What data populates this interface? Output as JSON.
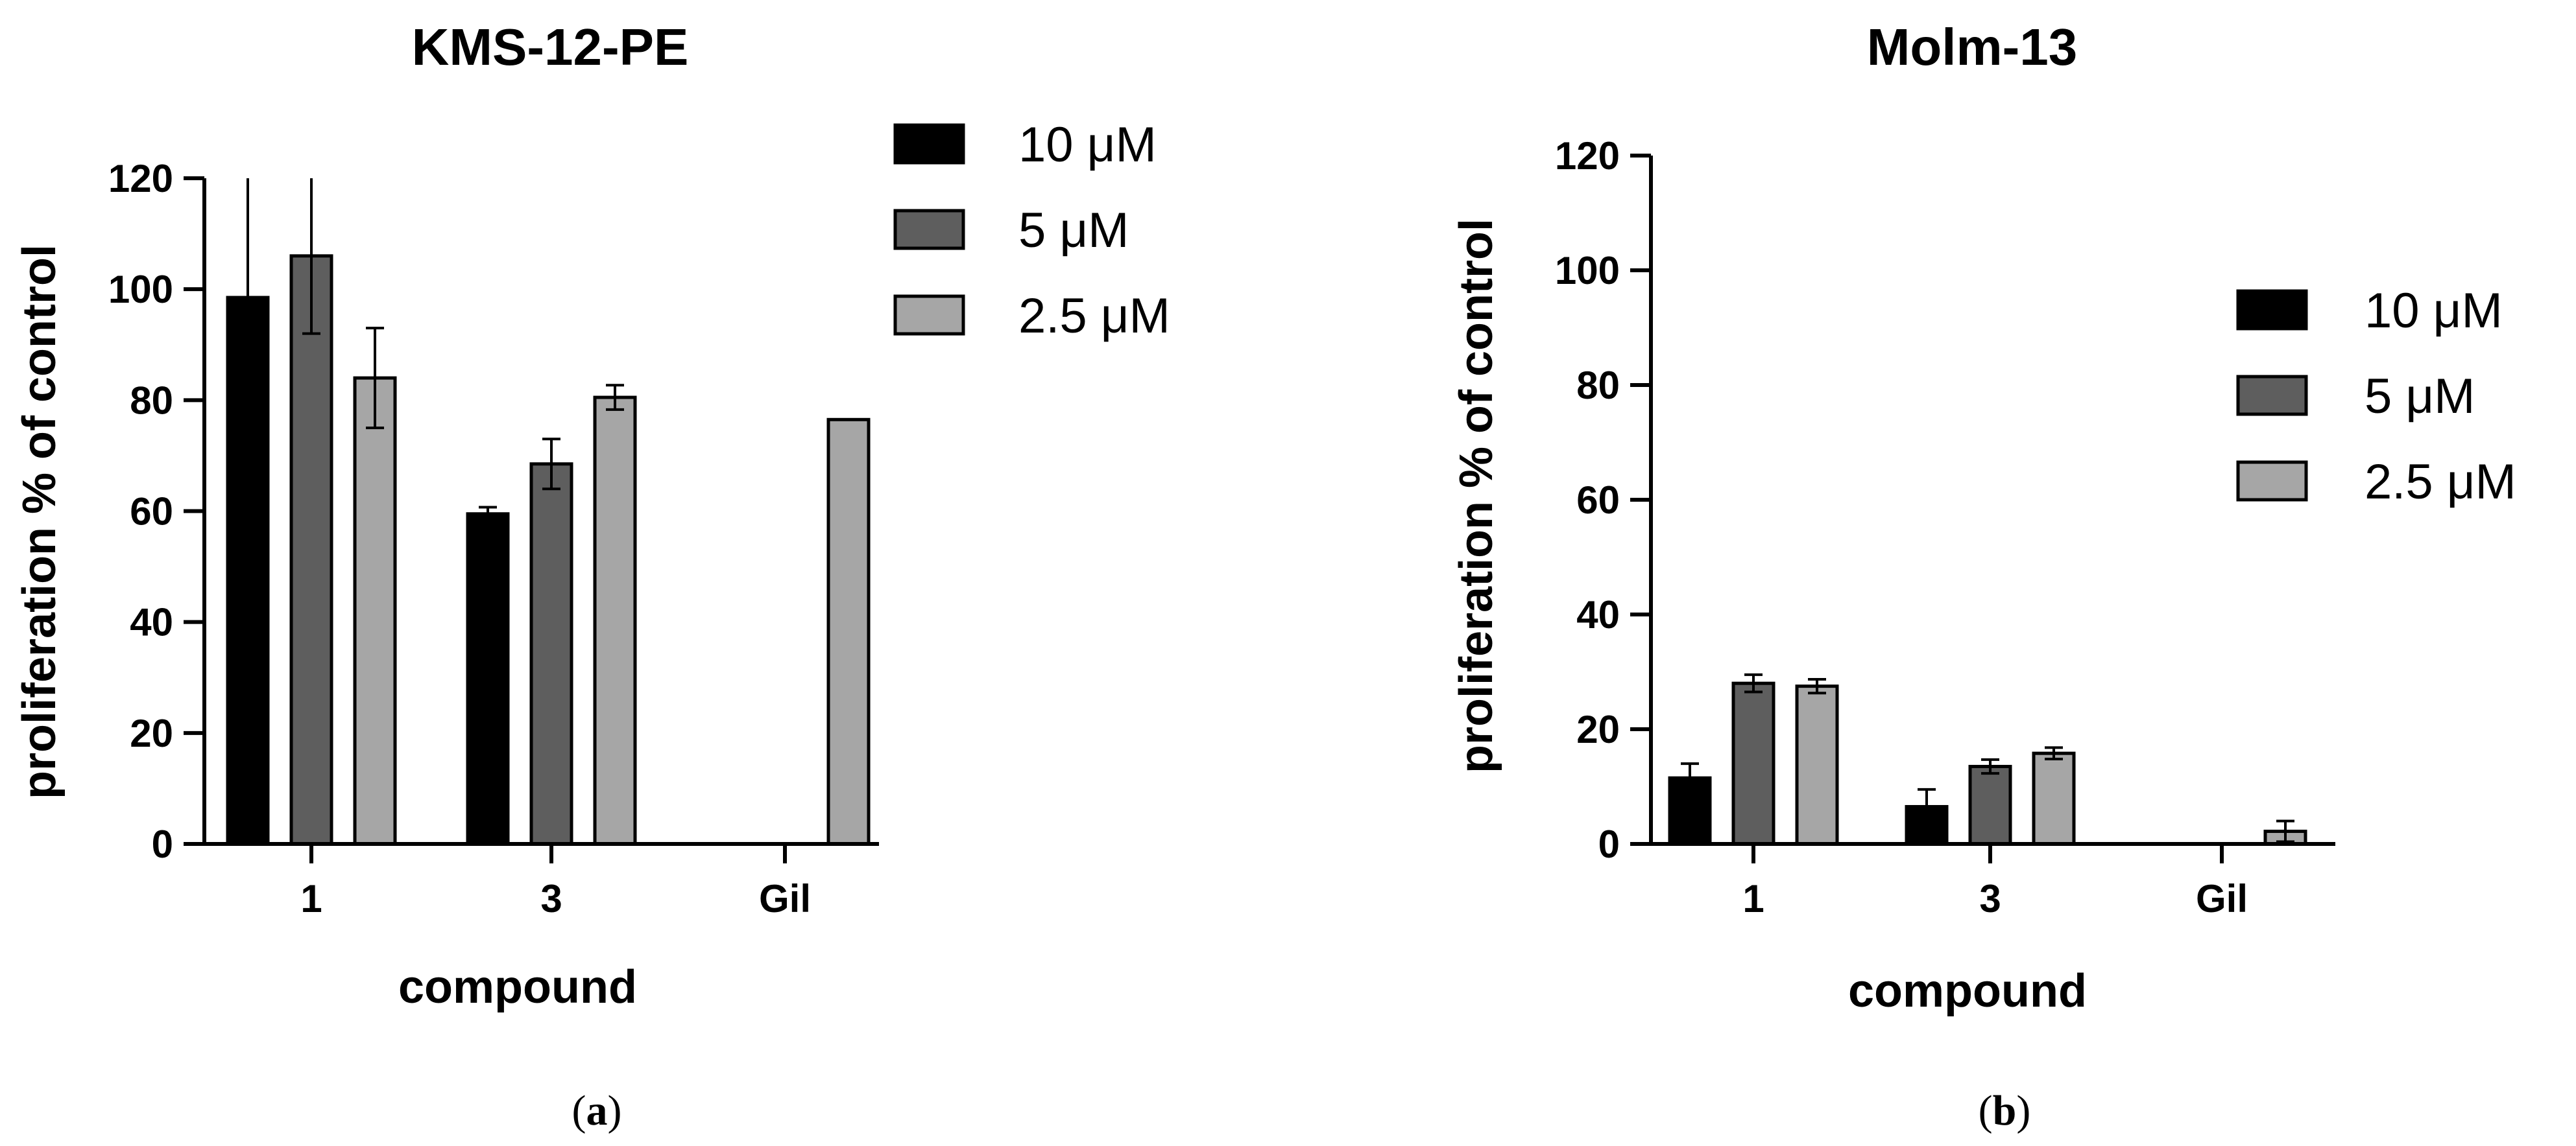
{
  "chart_data": [
    {
      "type": "bar",
      "title": "KMS-12-PE",
      "xlabel": "compound",
      "ylabel": "proliferation % of control",
      "categories": [
        "1",
        "3",
        "Gil"
      ],
      "ylim": [
        0,
        120
      ],
      "yticks": [
        0,
        20,
        40,
        60,
        80,
        100,
        120
      ],
      "legend_position": "top-right",
      "panel_letter": "a",
      "series": [
        {
          "name": "10 μM",
          "color": "#000000",
          "values": [
            98.5,
            59.5,
            null
          ],
          "errors": [
            21.5,
            1.2,
            null
          ]
        },
        {
          "name": "5 μM",
          "color": "#5e5e5e",
          "values": [
            106,
            68.5,
            null
          ],
          "errors": [
            14,
            4.5,
            null
          ]
        },
        {
          "name": "2.5 μM",
          "color": "#a6a6a6",
          "values": [
            84,
            80.5,
            76.5
          ],
          "errors": [
            9,
            2.2,
            0
          ]
        }
      ]
    },
    {
      "type": "bar",
      "title": "Molm-13",
      "xlabel": "compound",
      "ylabel": "proliferation % of control",
      "categories": [
        "1",
        "3",
        "Gil"
      ],
      "ylim": [
        0,
        120
      ],
      "yticks": [
        0,
        20,
        40,
        60,
        80,
        100,
        120
      ],
      "legend_position": "right",
      "panel_letter": "b",
      "series": [
        {
          "name": "10 μM",
          "color": "#000000",
          "values": [
            11.5,
            6.5,
            null
          ],
          "errors": [
            2.5,
            3,
            null
          ]
        },
        {
          "name": "5 μM",
          "color": "#5e5e5e",
          "values": [
            28,
            13.5,
            null
          ],
          "errors": [
            1.5,
            1.2,
            null
          ]
        },
        {
          "name": "2.5 μM",
          "color": "#a6a6a6",
          "values": [
            27.5,
            15.8,
            2.2
          ],
          "errors": [
            1.2,
            1,
            1.8
          ]
        }
      ]
    }
  ]
}
